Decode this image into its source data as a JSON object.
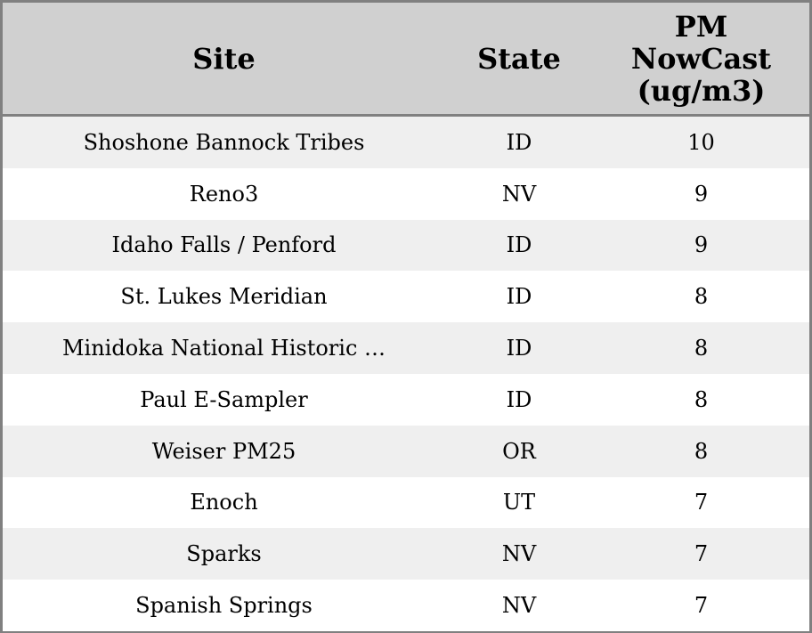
{
  "table": {
    "headers": [
      "Site",
      "State",
      "PM\nNowCast\n(ug/m3)"
    ],
    "header_lines": [
      "PM",
      "NowCast",
      "(ug/m3)"
    ],
    "rows": [
      [
        "Shoshone Bannock Tribes",
        "ID",
        "10"
      ],
      [
        "Reno3",
        "NV",
        "9"
      ],
      [
        "Idaho Falls / Penford",
        "ID",
        "9"
      ],
      [
        "St. Lukes Meridian",
        "ID",
        "8"
      ],
      [
        "Minidoka National Historic …",
        "ID",
        "8"
      ],
      [
        "Paul E-Sampler",
        "ID",
        "8"
      ],
      [
        "Weiser PM25",
        "OR",
        "8"
      ],
      [
        "Enoch",
        "UT",
        "7"
      ],
      [
        "Sparks",
        "NV",
        "7"
      ],
      [
        "Spanish Springs",
        "NV",
        "7"
      ]
    ]
  },
  "colors": {
    "header_bg": "#d0d0d0",
    "stripe": "#efefef",
    "border": "#808080"
  }
}
